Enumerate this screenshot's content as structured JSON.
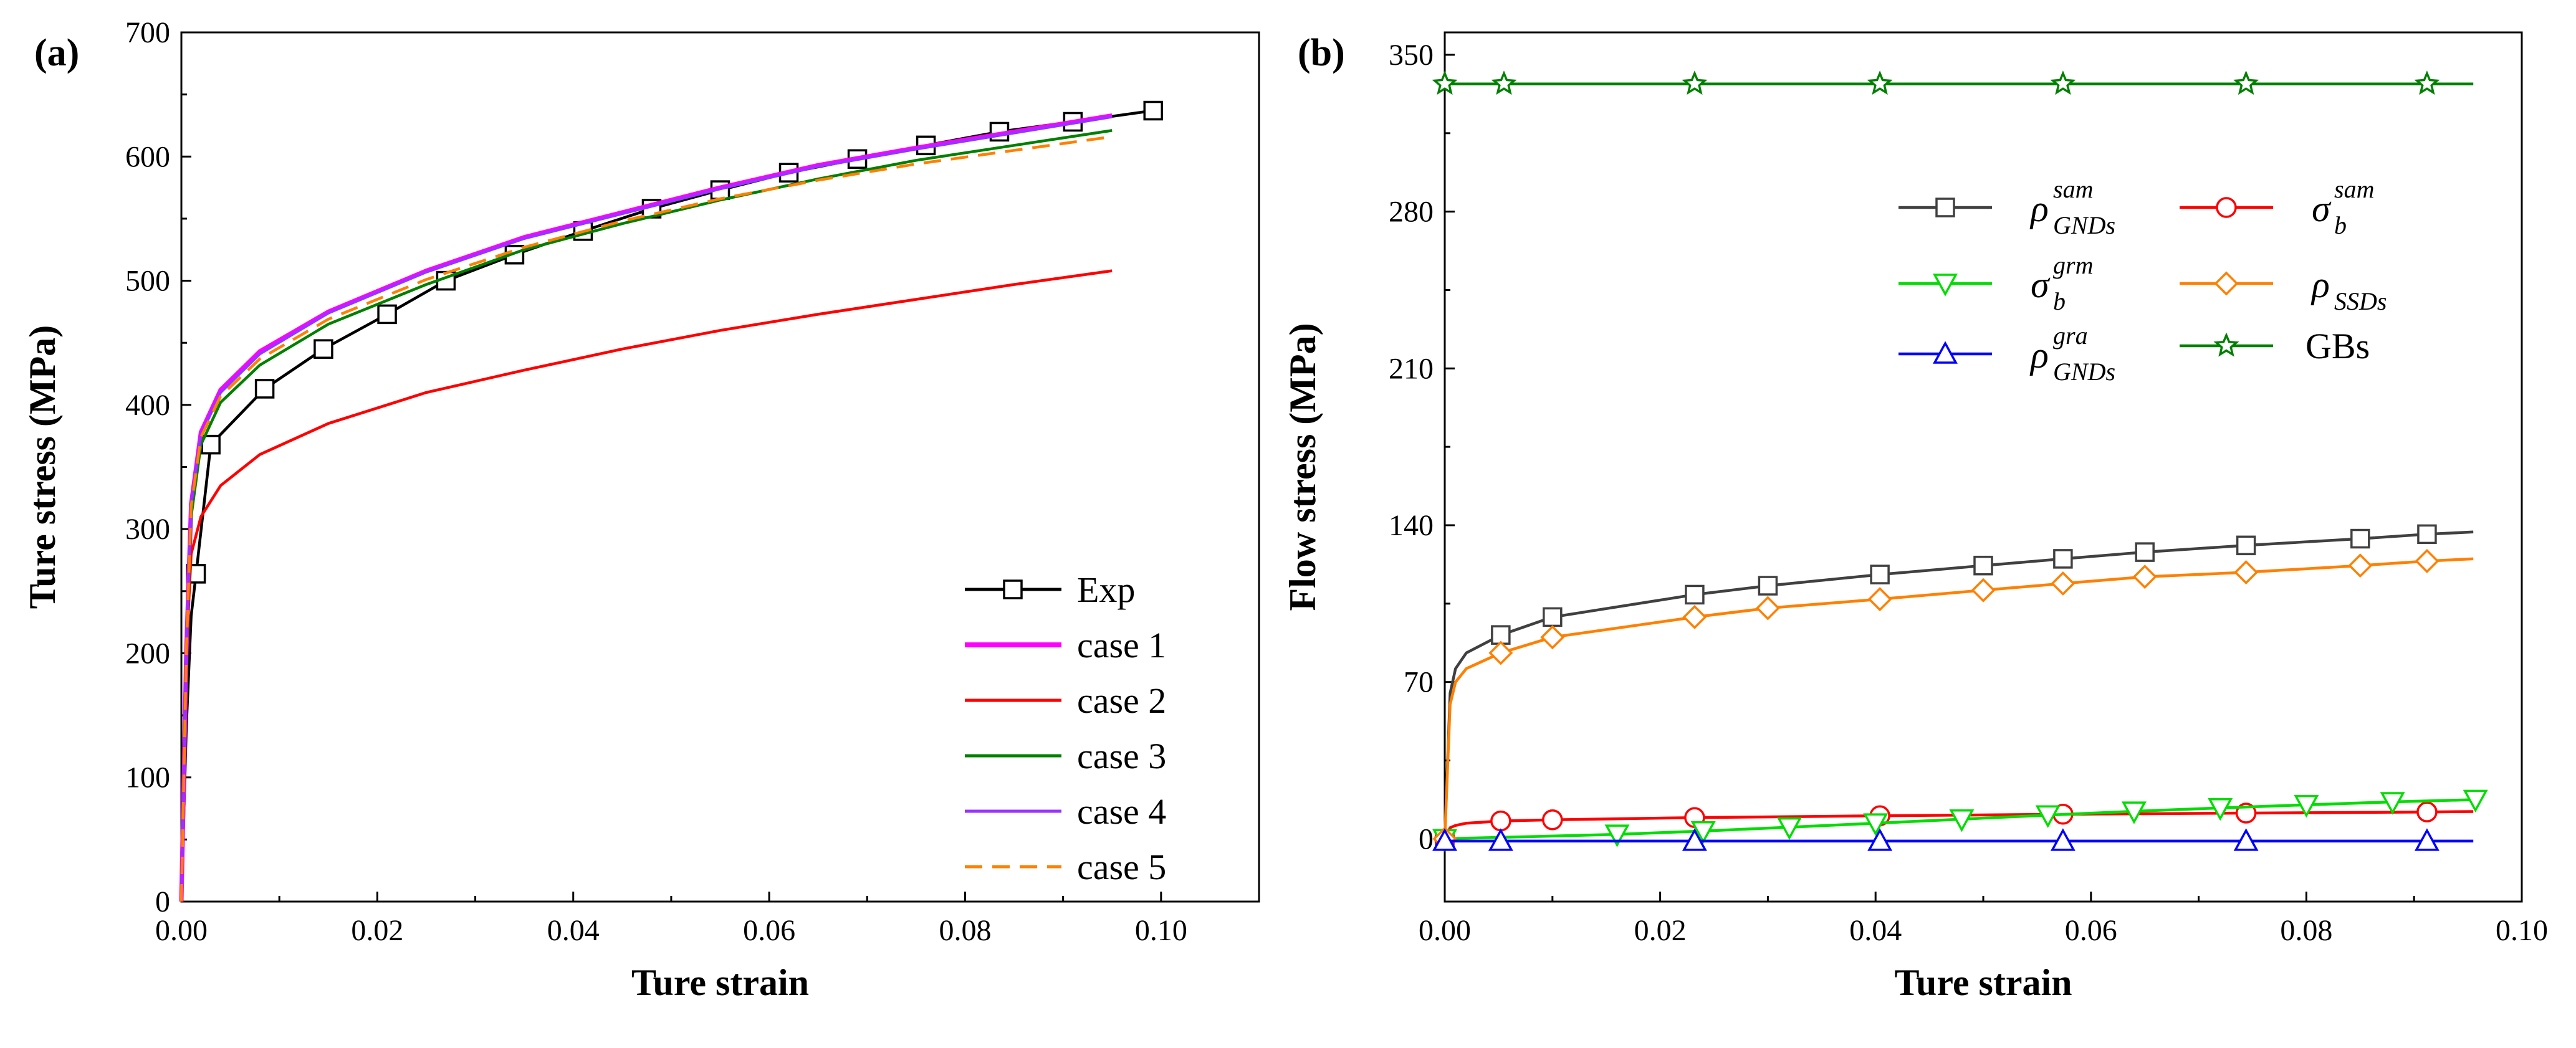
{
  "chart_data": [
    {
      "type": "line",
      "panel_label": "(a)",
      "xlabel": "Ture strain",
      "ylabel": "Ture stress (MPa)",
      "xlim": [
        0,
        0.11
      ],
      "ylim": [
        0,
        700
      ],
      "xticks": [
        "0.00",
        "0.02",
        "0.04",
        "0.06",
        "0.08",
        "0.10"
      ],
      "yticks": [
        "0",
        "100",
        "200",
        "300",
        "400",
        "500",
        "600",
        "700"
      ],
      "legend_position": "bottom-right",
      "series": [
        {
          "name": "Exp",
          "color": "#000000",
          "marker": "square",
          "style": "solid",
          "x": [
            0,
            0.0005,
            0.001,
            0.0015,
            0.003,
            0.0085,
            0.0145,
            0.021,
            0.027,
            0.034,
            0.041,
            0.048,
            0.055,
            0.062,
            0.069,
            0.076,
            0.0835,
            0.091,
            0.0992
          ],
          "y": [
            0,
            140,
            230,
            264,
            368,
            413,
            445,
            473,
            500,
            521,
            540,
            558,
            573,
            587,
            598,
            609,
            620,
            628,
            637
          ]
        },
        {
          "name": "case 1",
          "color": "#ff00ff",
          "marker": "none",
          "style": "solid",
          "x": [
            0,
            0.0005,
            0.001,
            0.002,
            0.004,
            0.008,
            0.015,
            0.025,
            0.035,
            0.045,
            0.055,
            0.065,
            0.075,
            0.085,
            0.095
          ],
          "y": [
            0,
            200,
            320,
            378,
            412,
            443,
            475,
            508,
            535,
            555,
            575,
            593,
            607,
            620,
            633
          ]
        },
        {
          "name": "case 2",
          "color": "#ff0000",
          "marker": "none",
          "style": "solid",
          "x": [
            0,
            0.0005,
            0.001,
            0.002,
            0.004,
            0.008,
            0.015,
            0.025,
            0.035,
            0.045,
            0.055,
            0.065,
            0.075,
            0.085,
            0.095
          ],
          "y": [
            0,
            200,
            280,
            310,
            335,
            360,
            385,
            410,
            428,
            445,
            460,
            473,
            485,
            497,
            508
          ]
        },
        {
          "name": "case 3",
          "color": "#008000",
          "marker": "none",
          "style": "solid",
          "x": [
            0,
            0.0005,
            0.001,
            0.002,
            0.004,
            0.008,
            0.015,
            0.025,
            0.035,
            0.045,
            0.055,
            0.065,
            0.075,
            0.085,
            0.095
          ],
          "y": [
            0,
            200,
            310,
            368,
            402,
            432,
            465,
            497,
            525,
            546,
            565,
            582,
            597,
            609,
            621
          ]
        },
        {
          "name": "case 4",
          "color": "#9933ff",
          "marker": "none",
          "style": "solid",
          "x": [
            0,
            0.0005,
            0.001,
            0.002,
            0.004,
            0.008,
            0.015,
            0.025,
            0.035,
            0.045,
            0.055,
            0.065,
            0.075,
            0.085,
            0.095
          ],
          "y": [
            0,
            200,
            320,
            376,
            410,
            441,
            474,
            507,
            534,
            554,
            574,
            592,
            606,
            619,
            632
          ]
        },
        {
          "name": "case 5",
          "color": "#ff8000",
          "marker": "none",
          "style": "dashed",
          "x": [
            0,
            0.0005,
            0.001,
            0.002,
            0.004,
            0.008,
            0.015,
            0.025,
            0.035,
            0.045,
            0.055,
            0.065,
            0.075,
            0.085,
            0.095
          ],
          "y": [
            0,
            200,
            318,
            374,
            407,
            437,
            469,
            501,
            527,
            548,
            566,
            581,
            594,
            605,
            616
          ]
        }
      ]
    },
    {
      "type": "line",
      "panel_label": "(b)",
      "xlabel": "Ture strain",
      "ylabel": "Flow stress (MPa)",
      "xlim": [
        0,
        0.1
      ],
      "ylim": [
        -28,
        360
      ],
      "xticks": [
        "0.00",
        "0.02",
        "0.04",
        "0.06",
        "0.08",
        "0.10"
      ],
      "yticks": [
        "0",
        "70",
        "140",
        "210",
        "280",
        "350"
      ],
      "legend_position": "top-right",
      "series": [
        {
          "name": "ρ",
          "sup": "sam",
          "sub": "GNDs",
          "color": "#404040",
          "marker": "square",
          "x": [
            0,
            0.0005,
            0.001,
            0.002,
            0.0052,
            0.01,
            0.0232,
            0.03,
            0.0404,
            0.05,
            0.0574,
            0.065,
            0.0744,
            0.085,
            0.0912,
            0.0955
          ],
          "y": [
            0,
            65,
            76,
            83,
            91,
            99,
            109,
            113,
            118,
            122,
            125,
            128,
            131,
            134,
            136,
            137
          ]
        },
        {
          "name": "σ",
          "sup": "sam",
          "sub": "b",
          "color": "#ff0000",
          "marker": "circle",
          "x": [
            0,
            0.0005,
            0.001,
            0.002,
            0.0052,
            0.01,
            0.0232,
            0.0404,
            0.0574,
            0.0744,
            0.0912,
            0.0955
          ],
          "y": [
            0,
            5,
            6,
            7,
            8,
            8.5,
            9.5,
            10.3,
            11,
            11.5,
            12,
            12.2
          ]
        },
        {
          "name": "σ",
          "sup": "grm",
          "sub": "b",
          "color": "#00dd00",
          "marker": "triangle-down",
          "x": [
            0,
            0.002,
            0.008,
            0.016,
            0.024,
            0.032,
            0.04,
            0.048,
            0.056,
            0.064,
            0.072,
            0.08,
            0.088,
            0.0957
          ],
          "y": [
            0,
            0.3,
            1,
            2,
            3.5,
            5.2,
            7,
            8.8,
            10.6,
            12.3,
            13.8,
            15.2,
            16.5,
            17.5
          ]
        },
        {
          "name": "ρ",
          "sup": "",
          "sub": "SSDs",
          "color": "#ff8000",
          "marker": "diamond",
          "x": [
            0,
            0.0005,
            0.001,
            0.002,
            0.0052,
            0.01,
            0.0232,
            0.03,
            0.0404,
            0.05,
            0.0574,
            0.065,
            0.0744,
            0.085,
            0.0912,
            0.0955
          ],
          "y": [
            0,
            60,
            70,
            76,
            83,
            90,
            99,
            103,
            107,
            111,
            114,
            117,
            119,
            122,
            124,
            125
          ]
        },
        {
          "name": "ρ",
          "sup": "gra",
          "sub": "GNDs",
          "color": "#0000ff",
          "marker": "triangle-up",
          "x": [
            0,
            0.0052,
            0.0232,
            0.0404,
            0.0574,
            0.0744,
            0.0912,
            0.0955
          ],
          "y": [
            -1,
            -1,
            -1,
            -1,
            -1,
            -1,
            -1,
            -1
          ]
        },
        {
          "name": "GBs",
          "sup": "",
          "sub": "",
          "color": "#008000",
          "marker": "star",
          "x": [
            0,
            0.0055,
            0.0232,
            0.0404,
            0.0574,
            0.0744,
            0.0912,
            0.0955
          ],
          "y": [
            337,
            337,
            337,
            337,
            337,
            337,
            337,
            337
          ]
        }
      ]
    }
  ]
}
